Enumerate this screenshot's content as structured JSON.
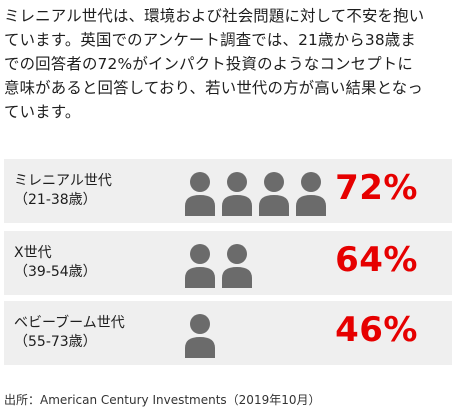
{
  "intro": {
    "lines": [
      "ミレニアル世代は、環境および社会問題に対して不安を抱い",
      "ています。英国でのアンケート調査では、21歳から38歳ま",
      "での回答者の72%がインパクト投資のようなコンセプトに",
      "意味があると回答しており、若い世代の方が高い結果となっ",
      "ています。"
    ]
  },
  "chart_data": {
    "type": "table",
    "rows": [
      {
        "group": "ミレニアル世代",
        "age": "（21-38歳）",
        "icons": 4,
        "value": 72,
        "value_text": "72%"
      },
      {
        "group": "X世代",
        "age": "（39-54歳）",
        "icons": 2,
        "value": 64,
        "value_text": "64%"
      },
      {
        "group": "ベビーブーム世代",
        "age": "（55-73歳）",
        "icons": 1,
        "value": 46,
        "value_text": "46%"
      }
    ],
    "icon": "person-icon",
    "colors": {
      "value": "#e60000",
      "icon": "#6b6b6b",
      "row_bg": "#efefef"
    }
  },
  "source": "出所：American Century Investments（2019年10月）"
}
